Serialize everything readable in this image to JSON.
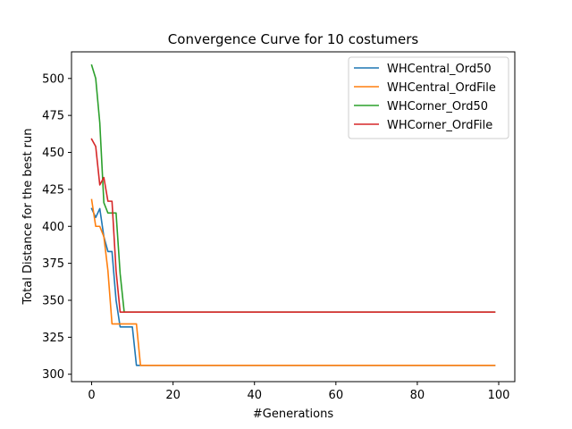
{
  "chart_data": {
    "type": "line",
    "title": "Convergence Curve for 10 costumers",
    "xlabel": "#Generations",
    "ylabel": "Total Distance for the best run",
    "xlim": [
      -4.95,
      103.95
    ],
    "ylim": [
      295,
      518
    ],
    "xticks": [
      0,
      20,
      40,
      60,
      80,
      100
    ],
    "yticks": [
      300,
      325,
      350,
      375,
      400,
      425,
      450,
      475,
      500
    ],
    "grid": false,
    "legend_position": "top-right",
    "series": [
      {
        "name": "WHCentral_Ord50",
        "color": "#1f77b4",
        "points": [
          [
            0,
            412
          ],
          [
            1,
            406
          ],
          [
            2,
            412
          ],
          [
            3,
            393
          ],
          [
            4,
            383
          ],
          [
            5,
            383
          ],
          [
            6,
            350
          ],
          [
            7,
            332
          ],
          [
            8,
            332
          ],
          [
            9,
            332
          ],
          [
            10,
            332
          ],
          [
            11,
            306
          ],
          [
            99,
            306
          ]
        ]
      },
      {
        "name": "WHCentral_OrdFile",
        "color": "#ff7f0e",
        "points": [
          [
            0,
            418
          ],
          [
            1,
            400
          ],
          [
            2,
            400
          ],
          [
            3,
            393
          ],
          [
            4,
            370
          ],
          [
            5,
            334
          ],
          [
            6,
            334
          ],
          [
            7,
            334
          ],
          [
            8,
            334
          ],
          [
            9,
            334
          ],
          [
            10,
            334
          ],
          [
            11,
            334
          ],
          [
            12,
            306
          ],
          [
            99,
            306
          ]
        ]
      },
      {
        "name": "WHCorner_Ord50",
        "color": "#2ca02c",
        "points": [
          [
            0,
            509
          ],
          [
            1,
            500
          ],
          [
            2,
            470
          ],
          [
            3,
            416
          ],
          [
            4,
            409
          ],
          [
            5,
            409
          ],
          [
            6,
            409
          ],
          [
            7,
            368
          ],
          [
            8,
            342
          ],
          [
            99,
            342
          ]
        ]
      },
      {
        "name": "WHCorner_OrdFile",
        "color": "#d62728",
        "points": [
          [
            0,
            459
          ],
          [
            1,
            454
          ],
          [
            2,
            428
          ],
          [
            3,
            433
          ],
          [
            4,
            417
          ],
          [
            5,
            417
          ],
          [
            6,
            370
          ],
          [
            7,
            342
          ],
          [
            99,
            342
          ]
        ]
      }
    ]
  }
}
